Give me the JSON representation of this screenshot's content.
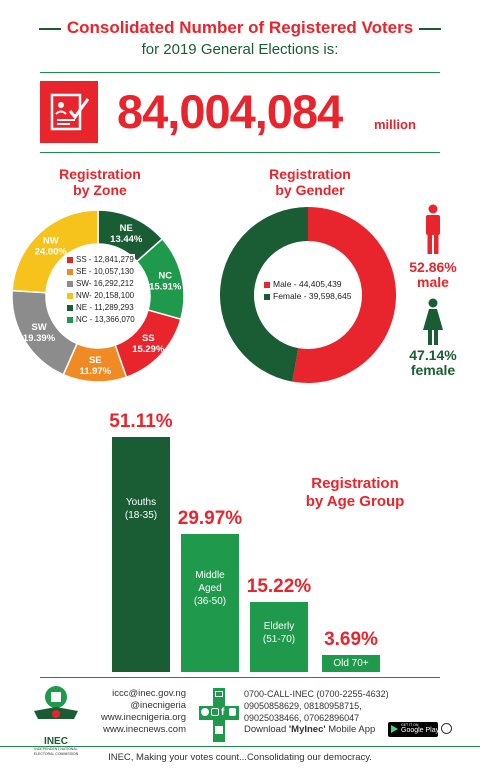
{
  "header": {
    "title": "Consolidated Number of Registered Voters",
    "subtitle": "for 2019 General Elections is:",
    "total": "84,004,084",
    "unit": "million"
  },
  "zone": {
    "title_line1": "Registration",
    "title_line2": "by Zone",
    "legend": [
      {
        "label": "SS - 12,841,279",
        "color": "#e8242c"
      },
      {
        "label": "SE - 10,057,130",
        "color": "#f08a24"
      },
      {
        "label": "SW- 16,292,212",
        "color": "#8c8c8c"
      },
      {
        "label": "NW- 20,158,100",
        "color": "#f5c31c"
      },
      {
        "label": "NE - 11,289,293",
        "color": "#1a5c34"
      },
      {
        "label": "NC - 13,366,070",
        "color": "#1f9a4c"
      }
    ],
    "slices": [
      {
        "code": "NE",
        "pct": "13.44%",
        "value": 13.44,
        "color": "#1a5c34"
      },
      {
        "code": "NC",
        "pct": "15.91%",
        "value": 15.91,
        "color": "#1f9a4c"
      },
      {
        "code": "SS",
        "pct": "15.29%",
        "value": 15.29,
        "color": "#e8242c"
      },
      {
        "code": "SE",
        "pct": "11.97%",
        "value": 11.97,
        "color": "#f08a24"
      },
      {
        "code": "SW",
        "pct": "19.39%",
        "value": 19.39,
        "color": "#8c8c8c"
      },
      {
        "code": "NW",
        "pct": "24.00%",
        "value": 24.0,
        "color": "#f5c31c"
      }
    ]
  },
  "gender": {
    "title_line1": "Registration",
    "title_line2": "by Gender",
    "legend": [
      {
        "label": "Male - 44,405,439",
        "color": "#e8242c"
      },
      {
        "label": "Female - 39,598,645",
        "color": "#1a5c34"
      }
    ],
    "male": {
      "pct": "52.86%",
      "word": "male",
      "value": 52.86,
      "color": "#e8242c"
    },
    "female": {
      "pct": "47.14%",
      "word": "female",
      "value": 47.14,
      "color": "#1a5c34"
    }
  },
  "age": {
    "title_line1": "Registration",
    "title_line2": "by Age Group",
    "groups": [
      {
        "pct": "51.11%",
        "value": 51.11,
        "label": [
          "Youths",
          "(18-35)"
        ],
        "color": "#1a5c34"
      },
      {
        "pct": "29.97%",
        "value": 29.97,
        "label": [
          "Middle",
          "Aged",
          "(36-50)"
        ],
        "color": "#1f9a4c"
      },
      {
        "pct": "15.22%",
        "value": 15.22,
        "label": [
          "Elderly",
          "(51-70)"
        ],
        "color": "#1f9a4c"
      },
      {
        "pct": "3.69%",
        "value": 3.69,
        "label": [
          "Old 70+"
        ],
        "color": "#1f9a4c"
      }
    ]
  },
  "chart_data": [
    {
      "type": "pie",
      "title": "Registration by Zone",
      "categories": [
        "NE",
        "NC",
        "SS",
        "SE",
        "SW",
        "NW"
      ],
      "values": [
        13.44,
        15.91,
        15.29,
        11.97,
        19.39,
        24.0
      ]
    },
    {
      "type": "pie",
      "title": "Registration by Gender",
      "categories": [
        "Male",
        "Female"
      ],
      "values": [
        52.86,
        47.14
      ]
    },
    {
      "type": "bar",
      "title": "Registration by Age Group",
      "categories": [
        "Youths (18-35)",
        "Middle Aged (36-50)",
        "Elderly (51-70)",
        "Old 70+"
      ],
      "values": [
        51.11,
        29.97,
        15.22,
        3.69
      ]
    }
  ],
  "footer": {
    "contacts_left": [
      "iccc@inec.gov.ng",
      "@inecnigeria",
      "www.inecnigeria.org",
      "www.inecnews.com"
    ],
    "contacts_right": [
      "0700-CALL-INEC (0700-2255-4632)",
      "09050858629, 08180958715,",
      "09025038466, 07062896047"
    ],
    "download_prefix": "Download ",
    "download_app": "'MyInec'",
    "download_suffix": " Mobile App",
    "store_small": "GET IT ON",
    "store_big": "Google Play",
    "logo_text": "INEC",
    "logo_sub1": "INDEPENDENT NATIONAL",
    "logo_sub2": "ELECTORAL COMMISSION",
    "tagline": "INEC, Making your votes count...Consolidating our democracy."
  }
}
